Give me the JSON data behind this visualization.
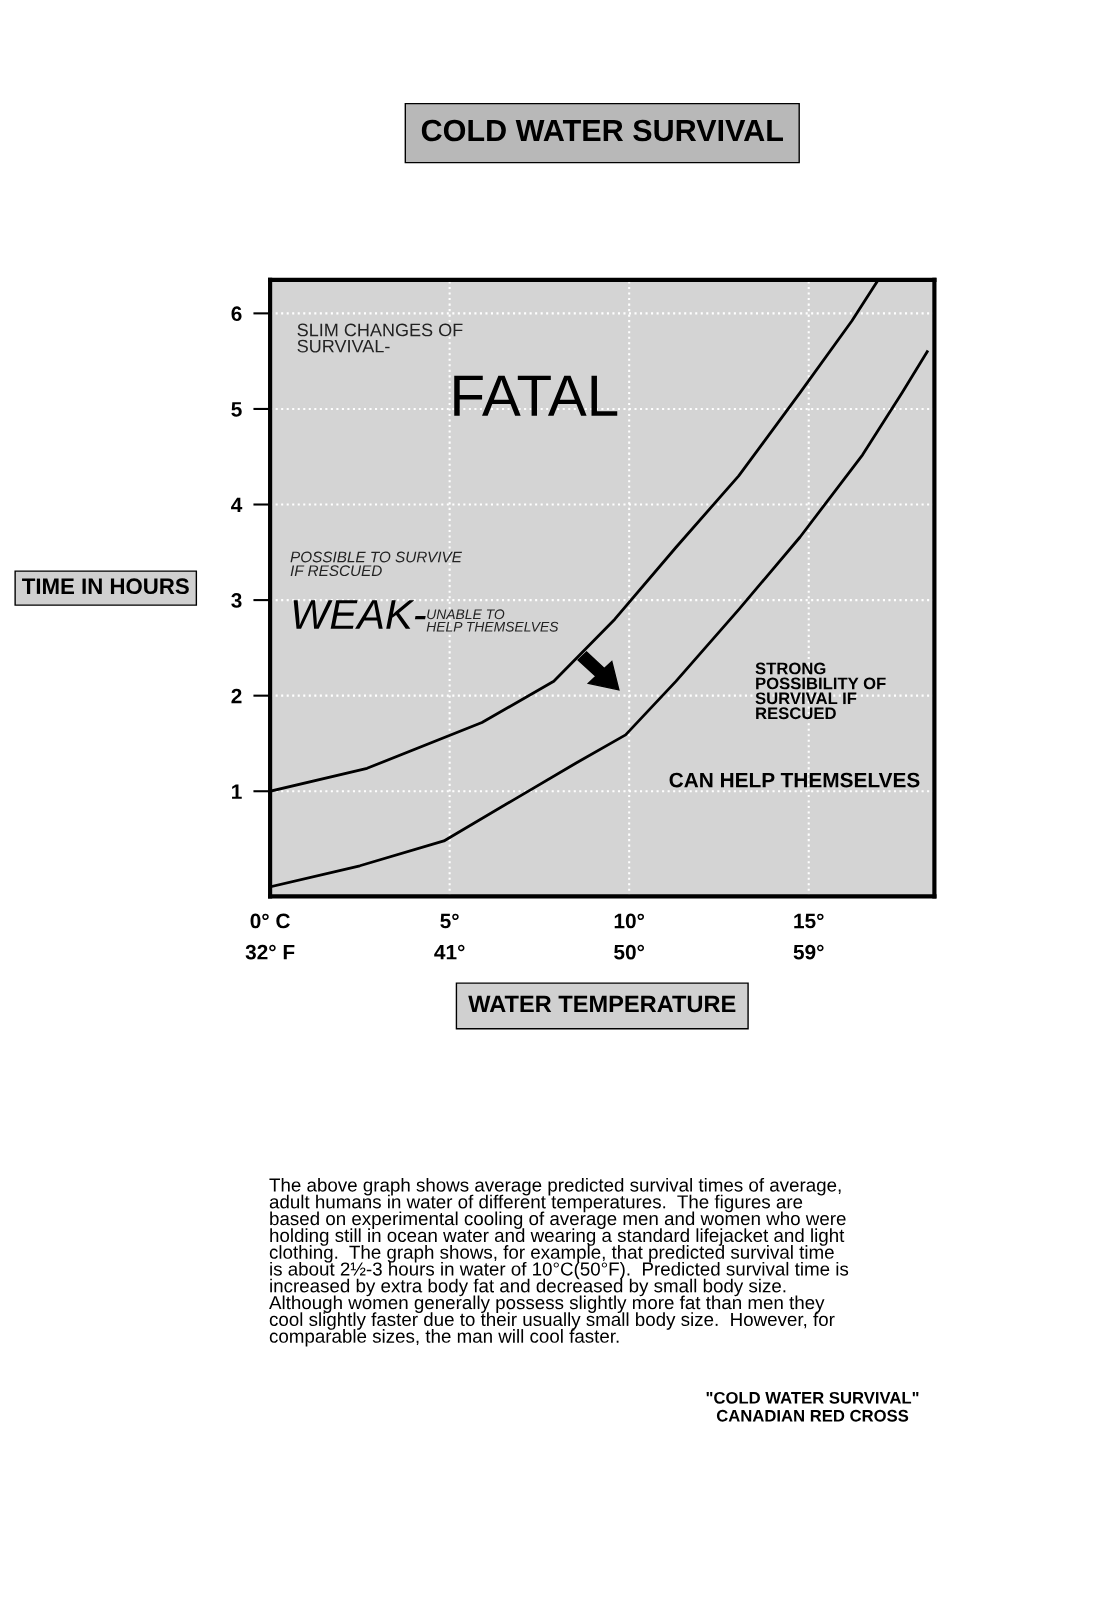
{
  "chart_data": {
    "type": "line",
    "title": "COLD WATER SURVIVAL",
    "xlabel": "WATER TEMPERATURE",
    "ylabel": "TIME IN HOURS",
    "xlim": [
      0,
      18.5
    ],
    "ylim": [
      -0.1,
      6.35
    ],
    "xticks": [
      {
        "value": 0,
        "label": "0° C"
      },
      {
        "value": 5,
        "label": "5°"
      },
      {
        "value": 10,
        "label": "10°"
      },
      {
        "value": 15,
        "label": "15°"
      }
    ],
    "x2lim": [
      32,
      65.3
    ],
    "x2ticks": [
      {
        "value": 32,
        "label": "32° F"
      },
      {
        "value": 41,
        "label": "41°"
      },
      {
        "value": 50,
        "label": "50°"
      },
      {
        "value": 59,
        "label": "59°"
      }
    ],
    "yticks": [
      1,
      2,
      3,
      4,
      5,
      6
    ],
    "grid": true,
    "marker": "none",
    "line_style": "solid",
    "series": [
      {
        "color": "#000000",
        "x": [
          0,
          2.7,
          5.9,
          7.9,
          9.6,
          11.3,
          13.05,
          14.76,
          16.2,
          16.9
        ],
        "values": [
          1.0,
          1.24,
          1.72,
          2.15,
          2.8,
          3.55,
          4.3,
          5.17,
          5.92,
          6.33
        ]
      },
      {
        "color": "#000000",
        "x": [
          0,
          2.5,
          4.84,
          6.78,
          8.5,
          9.9,
          11.3,
          13.05,
          14.76,
          16.5,
          17.6,
          18.3
        ],
        "values": [
          0.0,
          0.22,
          0.48,
          0.91,
          1.29,
          1.59,
          2.15,
          2.9,
          3.66,
          4.52,
          5.17,
          5.6
        ]
      }
    ],
    "annotations": [
      "SLIM CHANGES OF\nSURVIVAL-",
      "FATAL",
      "POSSIBLE TO SURVIVE\nIF RESCUED",
      "WEAK-",
      "UNABLE TO\nHELP THEMSELVES",
      "STRONG\nPOSSIBILITY OF\nSURVIVAL IF\nRESCUED",
      "CAN HELP THEMSELVES",
      "The above graph shows average predicted survival times of average,\nadult humans in water of different temperatures.  The figures are\nbased on experimental cooling of average men and women who were\nholding still in ocean water and wearing a standard lifejacket and light\nclothing.  The graph shows, for example, that predicted survival time\nis about 2½-3 hours in water of 10°C(50°F).  Predicted survival time is\nincreased by extra body fat and decreased by small body size.\nAlthough women generally possess slightly more fat than men they\ncool slightly faster due to their usually small body size.  However, for\ncomparable sizes, the man will cool faster.",
      "\"COLD WATER SURVIVAL\"\nCANADIAN RED CROSS"
    ]
  }
}
